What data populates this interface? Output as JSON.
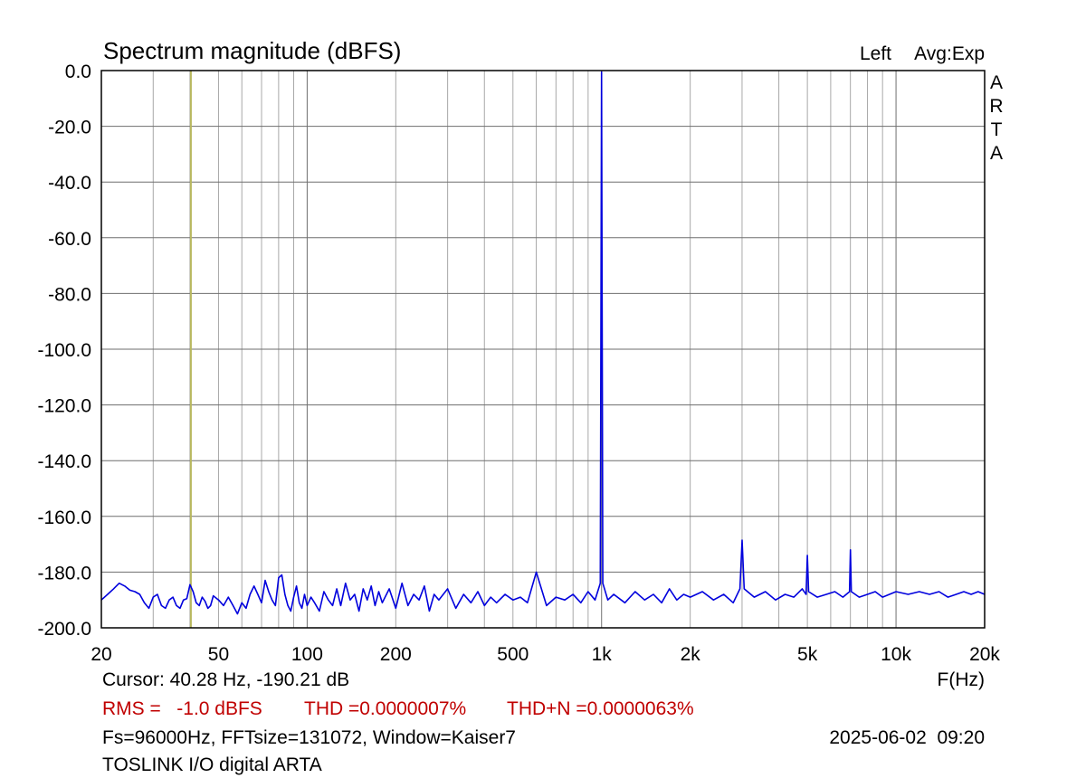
{
  "header": {
    "title": "Spectrum magnitude (dBFS)",
    "channel": "Left",
    "avg": "Avg:Exp",
    "brand": "ARTA"
  },
  "footer": {
    "cursor": "Cursor: 40.28 Hz, -190.21 dB",
    "xunit": "F(Hz)",
    "rms": "RMS =   -1.0 dBFS",
    "thd": "THD =0.0000007%",
    "thdn": "THD+N =0.0000063%",
    "params": "Fs=96000Hz, FFTsize=131072, Window=Kaiser7",
    "datetime": "2025-06-02  09:20",
    "device": "TOSLINK I/O digital ARTA"
  },
  "colors": {
    "trace": "#0000dd",
    "cursor": "#b8b860",
    "grid": "#a8a8a8",
    "red_text": "#c00000"
  },
  "chart_data": {
    "type": "line",
    "title": "Spectrum magnitude (dBFS)",
    "xlabel": "F(Hz)",
    "ylabel": "",
    "xscale": "log",
    "xlim": [
      20,
      20000
    ],
    "ylim": [
      -200,
      0
    ],
    "grid": true,
    "x_ticks": [
      {
        "v": 20,
        "label": "20"
      },
      {
        "v": 50,
        "label": "50"
      },
      {
        "v": 100,
        "label": "100"
      },
      {
        "v": 200,
        "label": "200"
      },
      {
        "v": 500,
        "label": "500"
      },
      {
        "v": 1000,
        "label": "1k"
      },
      {
        "v": 2000,
        "label": "2k"
      },
      {
        "v": 5000,
        "label": "5k"
      },
      {
        "v": 10000,
        "label": "10k"
      },
      {
        "v": 20000,
        "label": "20k"
      }
    ],
    "y_ticks": [
      {
        "v": 0,
        "label": "0.0"
      },
      {
        "v": -20,
        "label": "-20.0"
      },
      {
        "v": -40,
        "label": "-40.0"
      },
      {
        "v": -60,
        "label": "-60.0"
      },
      {
        "v": -80,
        "label": "-80.0"
      },
      {
        "v": -100,
        "label": "-100.0"
      },
      {
        "v": -120,
        "label": "-120.0"
      },
      {
        "v": -140,
        "label": "-140.0"
      },
      {
        "v": -160,
        "label": "-160.0"
      },
      {
        "v": -180,
        "label": "-180.0"
      },
      {
        "v": -200,
        "label": "-200.0"
      }
    ],
    "cursor": {
      "x": 40.28,
      "y": -190.21
    },
    "series": [
      {
        "x": [
          20,
          21,
          22,
          23,
          24,
          25,
          26,
          27,
          28,
          29,
          30,
          31,
          32,
          33,
          34,
          35,
          36,
          37,
          38,
          39,
          40,
          41,
          42,
          43,
          44,
          45,
          46,
          47,
          48,
          50,
          52,
          54,
          56,
          58,
          60,
          62,
          64,
          66,
          68,
          70,
          72,
          74,
          76,
          78,
          80,
          82,
          84,
          86,
          88,
          90,
          92,
          94,
          96,
          98,
          100,
          103,
          106,
          110,
          114,
          118,
          122,
          126,
          130,
          135,
          140,
          145,
          150,
          155,
          160,
          165,
          170,
          175,
          180,
          190,
          200,
          210,
          220,
          230,
          240,
          250,
          260,
          270,
          280,
          300,
          320,
          340,
          360,
          380,
          400,
          420,
          440,
          470,
          500,
          530,
          560,
          600,
          650,
          700,
          750,
          800,
          850,
          900,
          950,
          990,
          1000,
          1010,
          1050,
          1100,
          1200,
          1300,
          1400,
          1500,
          1600,
          1700,
          1800,
          1900,
          2000,
          2200,
          2400,
          2600,
          2800,
          2950,
          3000,
          3050,
          3300,
          3600,
          3900,
          4200,
          4500,
          4800,
          4950,
          5000,
          5050,
          5400,
          5800,
          6200,
          6600,
          6950,
          7000,
          7050,
          7500,
          8000,
          8500,
          9000,
          9500,
          10000,
          11000,
          12000,
          13000,
          14000,
          15000,
          16000,
          17000,
          18000,
          19000,
          20000
        ],
        "y": [
          -190,
          -188,
          -186,
          -184,
          -185,
          -186.5,
          -187,
          -188,
          -191,
          -193,
          -189,
          -188,
          -192,
          -193,
          -190,
          -189,
          -192,
          -193,
          -190,
          -189.5,
          -184.5,
          -187,
          -191,
          -192,
          -189,
          -190.5,
          -193,
          -192,
          -188.5,
          -190,
          -192,
          -189,
          -192,
          -195,
          -191,
          -193,
          -188,
          -185,
          -188,
          -191,
          -183,
          -187,
          -190,
          -192,
          -182,
          -181,
          -188,
          -192,
          -194,
          -189,
          -185,
          -191,
          -193,
          -188,
          -192,
          -189,
          -191,
          -194,
          -187,
          -190,
          -192,
          -186,
          -192,
          -184,
          -190,
          -188,
          -194,
          -186,
          -190,
          -185,
          -192,
          -187,
          -191,
          -186,
          -193,
          -184,
          -192,
          -188,
          -190,
          -185,
          -194,
          -188,
          -190,
          -186,
          -193,
          -188,
          -191,
          -187,
          -192,
          -189,
          -191,
          -188,
          -190,
          -189,
          -191,
          -180,
          -192,
          -189,
          -190,
          -188,
          -191,
          -187,
          -190,
          -184,
          -0.5,
          -184,
          -190,
          -188,
          -191,
          -187,
          -190,
          -188,
          -191,
          -186,
          -190,
          -188,
          -189,
          -187,
          -190,
          -188,
          -191,
          -186,
          -168.5,
          -186,
          -189,
          -187,
          -190,
          -188,
          -189,
          -186,
          -188,
          -174,
          -187,
          -189,
          -188,
          -187,
          -189,
          -187,
          -172,
          -187,
          -189,
          -188,
          -187,
          -189,
          -188,
          -187,
          -188,
          -187,
          -188,
          -187,
          -189,
          -188,
          -187,
          -188,
          -187,
          -188
        ]
      }
    ]
  }
}
